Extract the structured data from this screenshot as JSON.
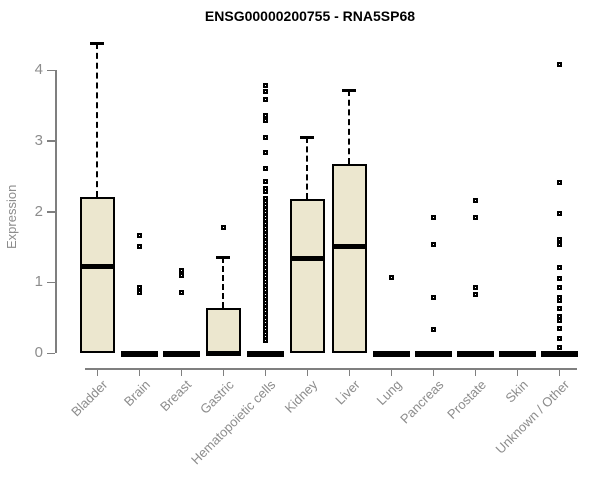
{
  "chart_data": {
    "type": "boxplot",
    "title": "ENSG00000200755 - RNA5SP68",
    "ylabel": "Expression",
    "xlabel": "",
    "ylim": [
      0,
      4.4
    ],
    "y_ticks": [
      0,
      1,
      2,
      3,
      4
    ],
    "grid": false,
    "legend": "none",
    "box_fill_color": "#ECE7CF",
    "box_border_color": "#000000",
    "axis_color": "#7f7f7f",
    "label_color": "#8c8c8c",
    "categories": [
      "Bladder",
      "Brain",
      "Breast",
      "Gastric",
      "Hematopoietic cells",
      "Kidney",
      "Liver",
      "Lung",
      "Pancreas",
      "Prostate",
      "Skin",
      "Unknown / Other"
    ],
    "series": [
      {
        "category": "Bladder",
        "q1": 0,
        "median": 1.22,
        "q3": 2.2,
        "whisker_low": 0,
        "whisker_high": 4.38,
        "outliers": []
      },
      {
        "category": "Brain",
        "q1": 0,
        "median": 0,
        "q3": 0,
        "whisker_low": 0,
        "whisker_high": 0,
        "outliers": [
          1.66,
          1.5,
          0.93,
          0.86
        ]
      },
      {
        "category": "Breast",
        "q1": 0,
        "median": 0,
        "q3": 0,
        "whisker_low": 0,
        "whisker_high": 0,
        "outliers": [
          1.17,
          1.09,
          0.86
        ]
      },
      {
        "category": "Gastric",
        "q1": 0,
        "median": 0,
        "q3": 0.64,
        "whisker_low": 0,
        "whisker_high": 1.36,
        "outliers": [
          1.77
        ]
      },
      {
        "category": "Hematopoietic cells",
        "q1": 0,
        "median": 0,
        "q3": 0,
        "whisker_low": 0,
        "whisker_high": 0,
        "outliers": [
          3.78,
          3.7,
          3.58,
          3.35,
          3.28,
          3.04,
          2.83,
          2.61,
          2.42,
          2.33,
          2.28,
          2.18,
          2.13,
          2.08,
          2.03,
          1.98,
          1.93,
          1.88,
          1.83,
          1.78,
          1.73,
          1.68,
          1.63,
          1.58,
          1.53,
          1.48,
          1.43,
          1.38,
          1.33,
          1.28,
          1.23,
          1.18,
          1.13,
          1.08,
          1.03,
          0.98,
          0.93,
          0.88,
          0.83,
          0.78,
          0.73,
          0.68,
          0.63,
          0.58,
          0.53,
          0.48,
          0.43,
          0.38,
          0.33,
          0.28,
          0.23,
          0.18
        ]
      },
      {
        "category": "Kidney",
        "q1": 0,
        "median": 1.33,
        "q3": 2.18,
        "whisker_low": 0,
        "whisker_high": 3.05,
        "outliers": []
      },
      {
        "category": "Liver",
        "q1": 0,
        "median": 1.5,
        "q3": 2.67,
        "whisker_low": 0,
        "whisker_high": 3.72,
        "outliers": []
      },
      {
        "category": "Lung",
        "q1": 0,
        "median": 0,
        "q3": 0,
        "whisker_low": 0,
        "whisker_high": 0,
        "outliers": [
          1.07
        ]
      },
      {
        "category": "Pancreas",
        "q1": 0,
        "median": 0,
        "q3": 0,
        "whisker_low": 0,
        "whisker_high": 0,
        "outliers": [
          1.92,
          1.54,
          0.78,
          0.33
        ]
      },
      {
        "category": "Prostate",
        "q1": 0,
        "median": 0,
        "q3": 0,
        "whisker_low": 0,
        "whisker_high": 0,
        "outliers": [
          2.15,
          1.92,
          0.92,
          0.82
        ]
      },
      {
        "category": "Skin",
        "q1": 0,
        "median": 0,
        "q3": 0,
        "whisker_low": 0,
        "whisker_high": 0,
        "outliers": []
      },
      {
        "category": "Unknown / Other",
        "q1": 0,
        "median": 0,
        "q3": 0,
        "whisker_low": 0,
        "whisker_high": 0,
        "outliers": [
          4.08,
          2.41,
          1.97,
          1.6,
          1.53,
          1.21,
          1.06,
          0.92,
          0.79,
          0.74,
          0.63,
          0.51,
          0.46,
          0.35,
          0.21,
          0.08
        ]
      }
    ]
  }
}
